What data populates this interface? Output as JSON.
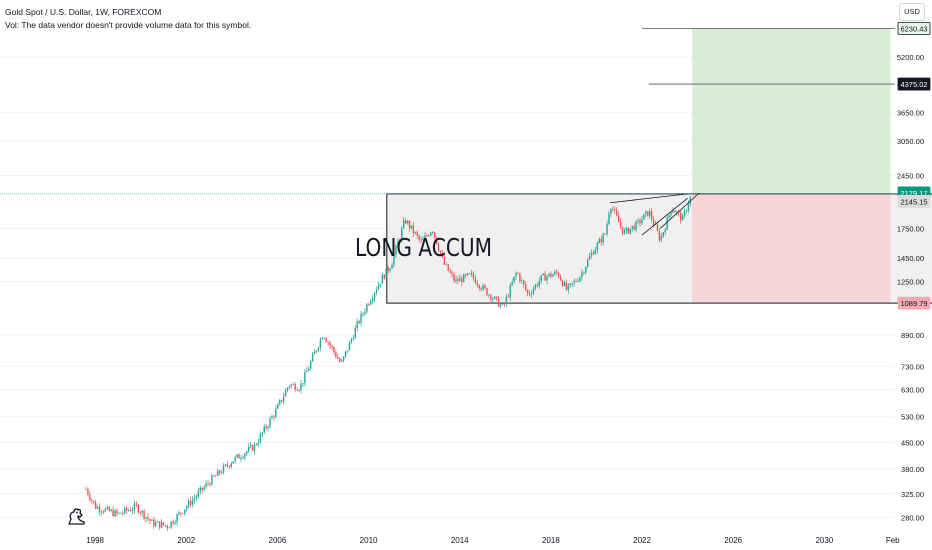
{
  "header": {
    "symbol_title": "Gold Spot / U.S. Dollar, 1W, FOREXCOM",
    "volume_note": "Vol: The data vendor doesn't provide volume data for this symbol.",
    "currency_button": "USD"
  },
  "logo_icon": "tradingview-logo-icon",
  "colors": {
    "up": "#26a69a",
    "down": "#ef5350",
    "profit_zone": "#d8ecd8",
    "loss_zone": "#f5d5d7",
    "box_fill": "#f0f0f0",
    "current_price_line": "#26a69a"
  },
  "chart_data": {
    "type": "candlestick",
    "title": "Gold Spot / U.S. Dollar, 1W, FOREXCOM",
    "y_scale": "log",
    "ylim": [
      255,
      7000
    ],
    "xlim": [
      1997.6,
      2033.1
    ],
    "x_ticks": [
      {
        "x": 1998,
        "label": "1998"
      },
      {
        "x": 2002,
        "label": "2002"
      },
      {
        "x": 2006,
        "label": "2006"
      },
      {
        "x": 2010,
        "label": "2010"
      },
      {
        "x": 2014,
        "label": "2014"
      },
      {
        "x": 2018,
        "label": "2018"
      },
      {
        "x": 2022,
        "label": "2022"
      },
      {
        "x": 2026,
        "label": "2026"
      },
      {
        "x": 2030,
        "label": "2030"
      },
      {
        "x": 2033,
        "label": "Feb"
      }
    ],
    "y_ticks": [
      280,
      325,
      380,
      450,
      530,
      630,
      730,
      890,
      1250,
      1450,
      1750,
      2450,
      3050,
      3650,
      5200
    ],
    "y_tick_labels": [
      "280.00",
      "325.00",
      "380.00",
      "450.00",
      "530.00",
      "630.00",
      "730.00",
      "890.00",
      "1250.00",
      "1450.00",
      "1750.00",
      "2450.00",
      "3050.00",
      "3650.00",
      "5200.00"
    ],
    "price_path": [
      [
        1997.6,
        335
      ],
      [
        1998.0,
        300
      ],
      [
        1999.0,
        285
      ],
      [
        1999.8,
        300
      ],
      [
        2000.5,
        270
      ],
      [
        2001.2,
        265
      ],
      [
        2002.0,
        300
      ],
      [
        2003.0,
        350
      ],
      [
        2004.0,
        400
      ],
      [
        2005.0,
        440
      ],
      [
        2006.0,
        560
      ],
      [
        2006.5,
        650
      ],
      [
        2007.0,
        640
      ],
      [
        2008.0,
        900
      ],
      [
        2008.8,
        740
      ],
      [
        2009.5,
        950
      ],
      [
        2010.0,
        1100
      ],
      [
        2010.5,
        1250
      ],
      [
        2011.0,
        1400
      ],
      [
        2011.6,
        1850
      ],
      [
        2012.3,
        1600
      ],
      [
        2012.8,
        1750
      ],
      [
        2013.3,
        1400
      ],
      [
        2013.8,
        1250
      ],
      [
        2014.5,
        1300
      ],
      [
        2015.0,
        1200
      ],
      [
        2015.9,
        1060
      ],
      [
        2016.5,
        1330
      ],
      [
        2017.0,
        1150
      ],
      [
        2017.6,
        1280
      ],
      [
        2018.3,
        1320
      ],
      [
        2018.7,
        1180
      ],
      [
        2019.3,
        1300
      ],
      [
        2019.8,
        1500
      ],
      [
        2020.4,
        1700
      ],
      [
        2020.6,
        2050
      ],
      [
        2021.2,
        1700
      ],
      [
        2021.8,
        1800
      ],
      [
        2022.3,
        1950
      ],
      [
        2022.8,
        1630
      ],
      [
        2023.3,
        2000
      ],
      [
        2023.8,
        1850
      ],
      [
        2024.0,
        2050
      ],
      [
        2024.2,
        2179
      ]
    ],
    "price_labels": [
      {
        "value": 6230.43,
        "text": "6230.43",
        "style": "outlined"
      },
      {
        "value": 4375.02,
        "text": "4375.02",
        "style": "dark"
      },
      {
        "value": 2179.17,
        "text": "2179.17",
        "style": "green"
      },
      {
        "value": 2145.15,
        "text": "2145.15",
        "style": "gray"
      },
      {
        "value": 1089.79,
        "text": "1089.79",
        "style": "red"
      }
    ],
    "horizontal_lines": [
      {
        "value": 6230.43,
        "x_start": 2022.0
      },
      {
        "value": 4375.02,
        "x_start": 2022.3
      }
    ],
    "current_price": 2179.17,
    "long_position": {
      "x_start": 2024.2,
      "x_end": 2032.9,
      "entry": 2179.17,
      "target": 6230.43,
      "stop": 1089.79
    },
    "accumulation_box": {
      "x_start": 2010.8,
      "x_end": 2038.2,
      "top": 2179.17,
      "bottom": 1089.79,
      "label": "LONG ACCUM"
    },
    "trend_lines": [
      [
        [
          2020.6,
          2060
        ],
        [
          2024.0,
          2180
        ]
      ],
      [
        [
          2022.0,
          1680
        ],
        [
          2024.0,
          2120
        ]
      ],
      [
        [
          2022.8,
          1750
        ],
        [
          2024.5,
          2190
        ]
      ]
    ]
  }
}
